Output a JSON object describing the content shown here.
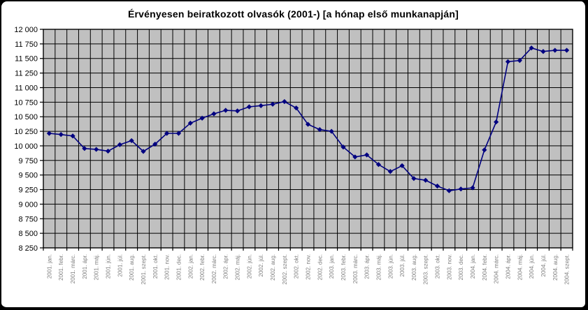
{
  "chart_data": {
    "type": "line",
    "title": "Érvényesen beiratkozott olvasók (2001-) [a hónap első munkanapján]",
    "categories": [
      "2001. jan.",
      "2001. febr.",
      "2001. márc.",
      "2001. ápr.",
      "2001. máj.",
      "2001. jún.",
      "2001. júl.",
      "2001. aug.",
      "2001. szept.",
      "2001. okt.",
      "2001. nov.",
      "2001. dec.",
      "2002. jan.",
      "2002. febr.",
      "2002. márc.",
      "2002. ápr.",
      "2002. máj.",
      "2002. jún.",
      "2002. júl.",
      "2002. aug.",
      "2002. szept.",
      "2002. okt.",
      "2002. nov.",
      "2002. dec.",
      "2003. jan.",
      "2003. febr.",
      "2003. márc.",
      "2003. ápr.",
      "2003. máj.",
      "2003. jún.",
      "2003. júl.",
      "2003. aug.",
      "2003. szept.",
      "2003. okt.",
      "2003. nov.",
      "2003. dec.",
      "2004. jan.",
      "2004. febr.",
      "2004. márc.",
      "2004. ápr.",
      "2004. máj.",
      "2004. jún.",
      "2004. júl.",
      "2004. aug.",
      "2004. szept."
    ],
    "values": [
      10215,
      10195,
      10170,
      9955,
      9940,
      9910,
      10020,
      10090,
      9905,
      10030,
      10215,
      10215,
      10390,
      10475,
      10550,
      10610,
      10600,
      10670,
      10690,
      10715,
      10760,
      10650,
      10370,
      10280,
      10250,
      9980,
      9810,
      9845,
      9680,
      9560,
      9660,
      9440,
      9410,
      9310,
      9230,
      9260,
      9280,
      9930,
      10410,
      11445,
      11465,
      11680,
      11620,
      11640,
      11640
    ],
    "xlabel": "",
    "ylabel": "",
    "ylim": [
      8250,
      12000
    ],
    "y_tick_step": 250,
    "y_tick_labels": [
      "8 250",
      "8 500",
      "8 750",
      "9 000",
      "9 250",
      "9 500",
      "9 750",
      "10 000",
      "10 250",
      "10 500",
      "10 750",
      "11 000",
      "11 250",
      "11 500",
      "11 750",
      "12 000"
    ],
    "grid": true,
    "legend": false,
    "marker": "diamond",
    "colors": {
      "series": "#000080",
      "plot_background": "#c0c0c0",
      "gridline": "#000000",
      "axis": "#000000",
      "x_label": "#808080",
      "y_label": "#000000",
      "background": "#ffffff",
      "border": "#000000"
    }
  }
}
